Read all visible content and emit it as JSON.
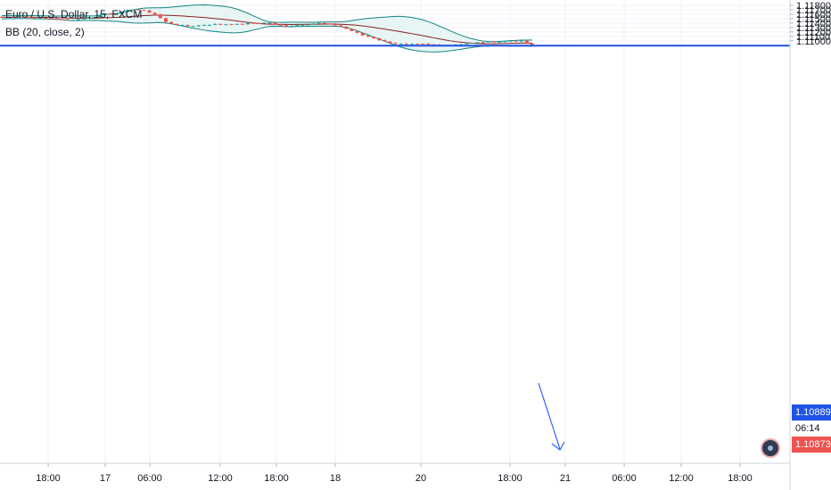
{
  "legend": {
    "symbol": "Euro / U.S. Dollar, 15, FXCM",
    "indicator": "BB (20, close, 2)"
  },
  "price_tags": {
    "current": "1.10889",
    "countdown": "06:14",
    "low": "1.10873"
  },
  "colors": {
    "up": "#26a69a",
    "down": "#ef5350",
    "basis": "#872323",
    "band": "#138484",
    "band_fill": "#e7f5f4",
    "hline": "#1e53e5",
    "arrow": "#2962ff"
  },
  "chart_data": {
    "type": "candlestick",
    "title": "Euro / U.S. Dollar, 15, FXCM",
    "indicator": "BB (20, close, 2)",
    "y_ticks": [
      "1.11800",
      "1.11700",
      "1.11600",
      "1.11500",
      "1.11400",
      "1.11300",
      "1.11200",
      "1.11100",
      "1.11000"
    ],
    "x_ticks": [
      "18:00",
      "17",
      "06:00",
      "12:00",
      "18:00",
      "18",
      "20",
      "18:00",
      "21",
      "06:00",
      "12:00",
      "18:00"
    ],
    "ylim": [
      1.1081,
      1.1181
    ],
    "horizontal_line": 1.10889,
    "close_path": [
      [
        0,
        1.1153
      ],
      [
        3,
        1.1155
      ],
      [
        6,
        1.1152
      ],
      [
        9,
        1.115
      ],
      [
        12,
        1.1146
      ],
      [
        14,
        1.1149
      ],
      [
        17,
        1.1155
      ],
      [
        19,
        1.1162
      ],
      [
        20,
        1.116
      ],
      [
        22,
        1.1165
      ],
      [
        24,
        1.1172
      ],
      [
        26,
        1.1168
      ],
      [
        28,
        1.116
      ],
      [
        30,
        1.1142
      ],
      [
        32,
        1.1136
      ],
      [
        34,
        1.1133
      ],
      [
        37,
        1.1136
      ],
      [
        40,
        1.1138
      ],
      [
        43,
        1.1137
      ],
      [
        46,
        1.114
      ],
      [
        49,
        1.1141
      ],
      [
        50,
        1.1136
      ],
      [
        52,
        1.1133
      ],
      [
        54,
        1.1136
      ],
      [
        56,
        1.1138
      ],
      [
        58,
        1.114
      ],
      [
        60,
        1.1138
      ],
      [
        62,
        1.1132
      ],
      [
        64,
        1.1122
      ],
      [
        66,
        1.1112
      ],
      [
        68,
        1.1106
      ],
      [
        70,
        1.1098
      ],
      [
        72,
        1.1093
      ],
      [
        74,
        1.1092
      ],
      [
        77,
        1.1092
      ],
      [
        80,
        1.109
      ],
      [
        82,
        1.1091
      ],
      [
        85,
        1.1094
      ],
      [
        88,
        1.1097
      ],
      [
        91,
        1.1098
      ],
      [
        93,
        1.11
      ],
      [
        95,
        1.1099
      ],
      [
        96,
        1.1094
      ],
      [
        97,
        1.109
      ],
      [
        98,
        1.1088
      ]
    ]
  }
}
